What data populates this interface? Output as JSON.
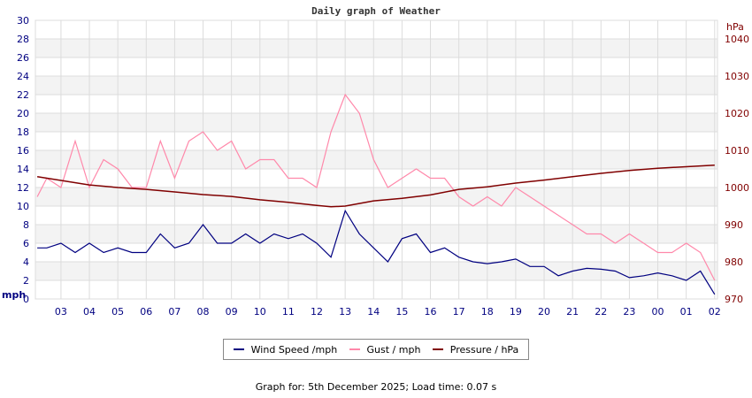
{
  "chart_data": {
    "type": "line",
    "title": "Daily graph of Weather",
    "left_axis": {
      "unit": "mph",
      "ylim": [
        0,
        30
      ],
      "ticks": [
        0,
        2,
        4,
        6,
        8,
        10,
        12,
        14,
        16,
        18,
        20,
        22,
        24,
        26,
        28,
        30
      ],
      "color": "#000080"
    },
    "right_axis": {
      "unit": "hPa",
      "ylim": [
        970,
        1040
      ],
      "ticks": [
        970,
        980,
        990,
        1000,
        1010,
        1020,
        1030,
        1040
      ],
      "color": "#800000"
    },
    "x_ticks": [
      "03",
      "04",
      "05",
      "06",
      "07",
      "08",
      "09",
      "10",
      "11",
      "12",
      "13",
      "14",
      "15",
      "16",
      "17",
      "18",
      "19",
      "20",
      "21",
      "22",
      "23",
      "00",
      "01",
      "02"
    ],
    "x_range": [
      "02:06",
      "02:06"
    ],
    "grid": true,
    "legend_placement": "bottom",
    "series": [
      {
        "name": "Wind Speed /mph",
        "color": "#000080",
        "axis": "left",
        "points": [
          [
            "02:10",
            5.5
          ],
          [
            "02:30",
            5.5
          ],
          [
            "03:00",
            6
          ],
          [
            "03:30",
            5
          ],
          [
            "04:00",
            6
          ],
          [
            "04:30",
            5
          ],
          [
            "05:00",
            5.5
          ],
          [
            "05:30",
            5
          ],
          [
            "06:00",
            5
          ],
          [
            "06:30",
            7
          ],
          [
            "07:00",
            5.5
          ],
          [
            "07:30",
            6
          ],
          [
            "08:00",
            8
          ],
          [
            "08:30",
            6
          ],
          [
            "09:00",
            6
          ],
          [
            "09:30",
            7
          ],
          [
            "10:00",
            6
          ],
          [
            "10:30",
            7
          ],
          [
            "11:00",
            6.5
          ],
          [
            "11:30",
            7
          ],
          [
            "12:00",
            6
          ],
          [
            "12:30",
            4.5
          ],
          [
            "13:00",
            9.5
          ],
          [
            "13:30",
            7
          ],
          [
            "14:00",
            5.5
          ],
          [
            "14:30",
            4
          ],
          [
            "15:00",
            6.5
          ],
          [
            "15:30",
            7
          ],
          [
            "16:00",
            5
          ],
          [
            "16:30",
            5.5
          ],
          [
            "17:00",
            4.5
          ],
          [
            "17:30",
            4
          ],
          [
            "18:00",
            3.8
          ],
          [
            "18:30",
            4
          ],
          [
            "19:00",
            4.3
          ],
          [
            "19:30",
            3.5
          ],
          [
            "20:00",
            3.5
          ],
          [
            "20:30",
            2.5
          ],
          [
            "21:00",
            3
          ],
          [
            "21:30",
            3.3
          ],
          [
            "22:00",
            3.2
          ],
          [
            "22:30",
            3
          ],
          [
            "23:00",
            2.3
          ],
          [
            "23:30",
            2.5
          ],
          [
            "00:00",
            2.8
          ],
          [
            "00:30",
            2.5
          ],
          [
            "01:00",
            2
          ],
          [
            "01:30",
            3
          ],
          [
            "02:00",
            0.5
          ]
        ]
      },
      {
        "name": "Gust / mph",
        "color": "#ff88aa",
        "axis": "left",
        "points": [
          [
            "02:10",
            11
          ],
          [
            "02:30",
            13
          ],
          [
            "03:00",
            12
          ],
          [
            "03:30",
            17
          ],
          [
            "04:00",
            12
          ],
          [
            "04:30",
            15
          ],
          [
            "05:00",
            14
          ],
          [
            "05:30",
            12
          ],
          [
            "06:00",
            12
          ],
          [
            "06:30",
            17
          ],
          [
            "07:00",
            13
          ],
          [
            "07:30",
            17
          ],
          [
            "08:00",
            18
          ],
          [
            "08:30",
            16
          ],
          [
            "09:00",
            17
          ],
          [
            "09:30",
            14
          ],
          [
            "10:00",
            15
          ],
          [
            "10:30",
            15
          ],
          [
            "11:00",
            13
          ],
          [
            "11:30",
            13
          ],
          [
            "12:00",
            12
          ],
          [
            "12:30",
            18
          ],
          [
            "13:00",
            22
          ],
          [
            "13:30",
            20
          ],
          [
            "14:00",
            15
          ],
          [
            "14:30",
            12
          ],
          [
            "15:00",
            13
          ],
          [
            "15:30",
            14
          ],
          [
            "16:00",
            13
          ],
          [
            "16:30",
            13
          ],
          [
            "17:00",
            11
          ],
          [
            "17:30",
            10
          ],
          [
            "18:00",
            11
          ],
          [
            "18:30",
            10
          ],
          [
            "19:00",
            12
          ],
          [
            "19:30",
            11
          ],
          [
            "20:00",
            10
          ],
          [
            "20:30",
            9
          ],
          [
            "21:00",
            8
          ],
          [
            "21:30",
            7
          ],
          [
            "22:00",
            7
          ],
          [
            "22:30",
            6
          ],
          [
            "23:00",
            7
          ],
          [
            "23:30",
            6
          ],
          [
            "00:00",
            5
          ],
          [
            "00:30",
            5
          ],
          [
            "01:00",
            6
          ],
          [
            "01:30",
            5
          ],
          [
            "02:00",
            2
          ]
        ]
      },
      {
        "name": "Pressure / hPa",
        "color": "#800000",
        "axis": "right",
        "points": [
          [
            "02:10",
            1002.9
          ],
          [
            "03:00",
            1001.9
          ],
          [
            "04:00",
            1000.7
          ],
          [
            "05:00",
            1000
          ],
          [
            "06:00",
            999.5
          ],
          [
            "07:00",
            998.8
          ],
          [
            "08:00",
            998.1
          ],
          [
            "09:00",
            997.6
          ],
          [
            "10:00",
            996.7
          ],
          [
            "11:00",
            996
          ],
          [
            "12:00",
            995.2
          ],
          [
            "12:30",
            994.8
          ],
          [
            "13:00",
            995
          ],
          [
            "14:00",
            996.4
          ],
          [
            "15:00",
            997.1
          ],
          [
            "16:00",
            998
          ],
          [
            "17:00",
            999.5
          ],
          [
            "18:00",
            1000.2
          ],
          [
            "19:00",
            1001.2
          ],
          [
            "20:00",
            1002
          ],
          [
            "21:00",
            1002.9
          ],
          [
            "22:00",
            1003.8
          ],
          [
            "23:00",
            1004.6
          ],
          [
            "00:00",
            1005.2
          ],
          [
            "01:00",
            1005.6
          ],
          [
            "02:00",
            1006
          ]
        ]
      }
    ]
  },
  "footer": "Graph for: 5th December 2025; Load time: 0.07 s"
}
